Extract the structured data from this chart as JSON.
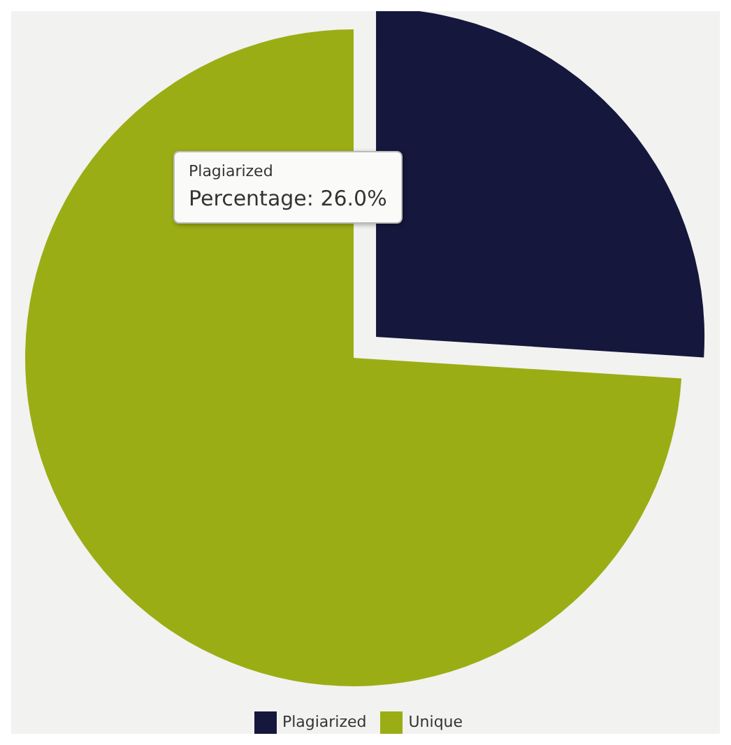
{
  "chart_data": {
    "type": "pie",
    "categories": [
      "Plagiarized",
      "Unique"
    ],
    "values": [
      26,
      74
    ],
    "colors": [
      "#15173d",
      "#9bad14"
    ],
    "legend": "bottom",
    "annotations": [
      "Plagiarized",
      "Percentage: 26.0%"
    ]
  }
}
